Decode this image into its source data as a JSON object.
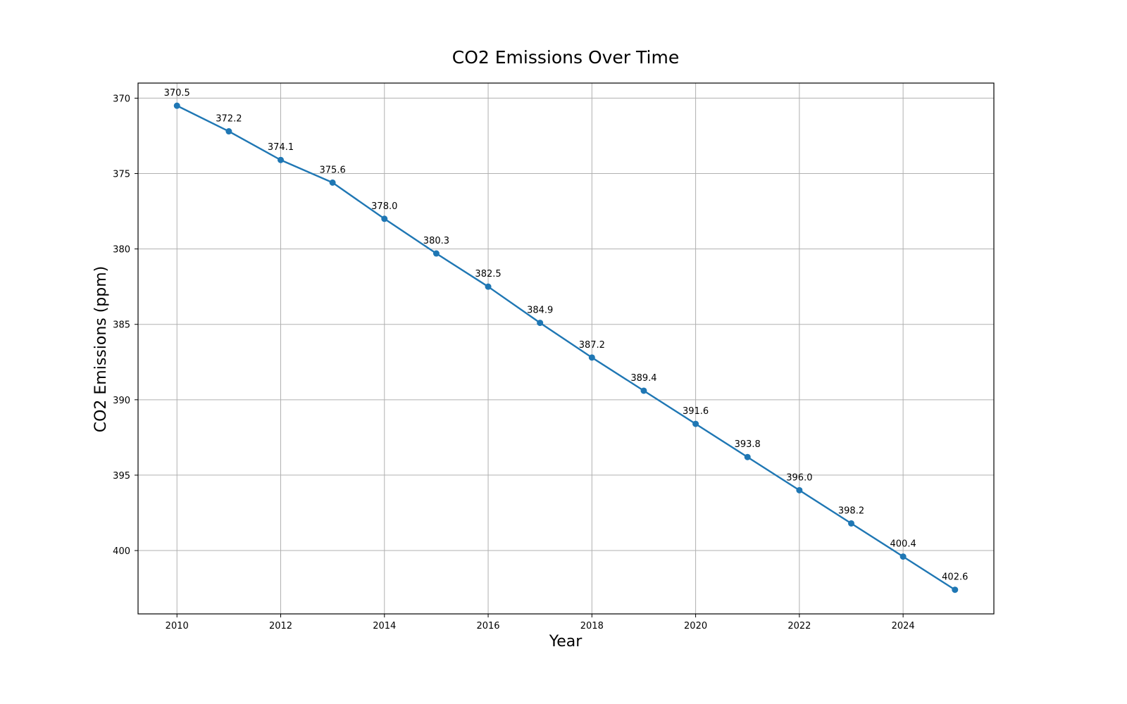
{
  "chart_data": {
    "type": "line",
    "title": "CO2 Emissions Over Time",
    "xlabel": "Year",
    "ylabel": "CO2 Emissions (ppm)",
    "y_inverted": true,
    "grid": true,
    "x": [
      2010,
      2011,
      2012,
      2013,
      2014,
      2015,
      2016,
      2017,
      2018,
      2019,
      2020,
      2021,
      2022,
      2023,
      2024,
      2025
    ],
    "series": [
      {
        "values": [
          370.5,
          372.2,
          374.1,
          375.6,
          378.0,
          380.3,
          382.5,
          384.9,
          387.2,
          389.4,
          391.6,
          393.8,
          396.0,
          398.2,
          400.4,
          402.6
        ],
        "point_labels": [
          "370.5",
          "372.2",
          "374.1",
          "375.6",
          "378.0",
          "380.3",
          "382.5",
          "384.9",
          "387.2",
          "389.4",
          "391.6",
          "393.8",
          "396.0",
          "398.2",
          "400.4",
          "402.6"
        ],
        "color": "#1f77b4"
      }
    ],
    "xlim": [
      2009.25,
      2025.75
    ],
    "ylim": [
      404.2,
      369.0
    ],
    "xticks": [
      2010,
      2012,
      2014,
      2016,
      2018,
      2020,
      2022,
      2024
    ],
    "xtick_labels": [
      "2010",
      "2012",
      "2014",
      "2016",
      "2018",
      "2020",
      "2022",
      "2024"
    ],
    "yticks": [
      370,
      375,
      380,
      385,
      390,
      395,
      400
    ],
    "ytick_labels": [
      "370",
      "375",
      "380",
      "385",
      "390",
      "395",
      "400"
    ],
    "colors": {
      "grid": "#b0b0b0",
      "frame": "#000000"
    }
  }
}
